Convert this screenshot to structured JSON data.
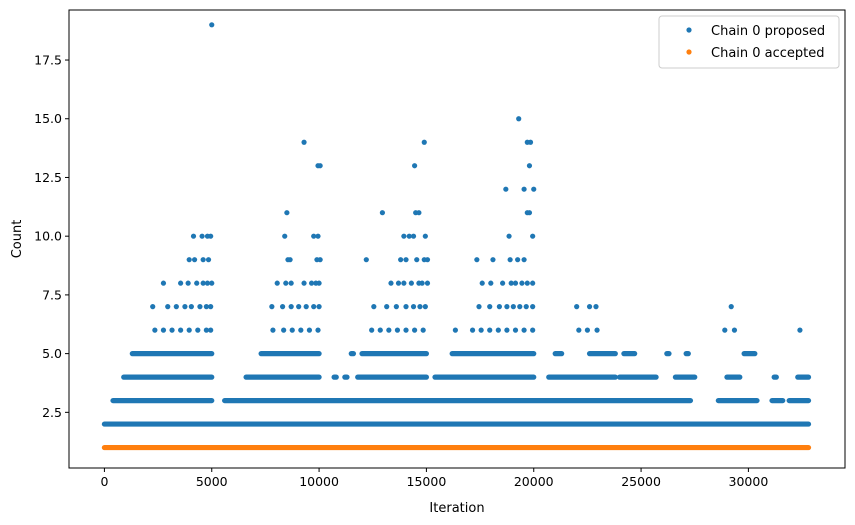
{
  "chart_data": {
    "type": "scatter",
    "title": "",
    "xlabel": "Iteration",
    "ylabel": "Count",
    "xlim": [
      -1650,
      34500
    ],
    "ylim": [
      0.13,
      19.63
    ],
    "xticks": [
      0,
      5000,
      10000,
      15000,
      20000,
      25000,
      30000
    ],
    "yticks": [
      2.5,
      5.0,
      7.5,
      10.0,
      12.5,
      15.0,
      17.5
    ],
    "xtick_labels": [
      "0",
      "5000",
      "10000",
      "15000",
      "20000",
      "25000",
      "30000"
    ],
    "ytick_labels": [
      "2.5",
      "5.0",
      "7.5",
      "10.0",
      "12.5",
      "15.0",
      "17.5"
    ],
    "grid": false,
    "legend_position": "top-right",
    "x_range": [
      0,
      32800
    ],
    "series": [
      {
        "name": "Chain 0 proposed",
        "color": "#1f77b4",
        "marker": "dot",
        "points": [
          [
            5000,
            19
          ],
          [
            9300,
            14
          ],
          [
            9950,
            13
          ],
          [
            10050,
            13
          ],
          [
            14900,
            14
          ],
          [
            14450,
            13
          ],
          [
            19300,
            15
          ],
          [
            19700,
            14
          ],
          [
            19850,
            14
          ],
          [
            19800,
            13
          ],
          [
            18700,
            12
          ],
          [
            19550,
            12
          ],
          [
            20000,
            12
          ],
          [
            8500,
            11
          ],
          [
            12950,
            11
          ],
          [
            14500,
            11
          ],
          [
            14650,
            11
          ],
          [
            19700,
            11
          ],
          [
            19800,
            11
          ],
          [
            4150,
            10
          ],
          [
            4550,
            10
          ],
          [
            4800,
            10
          ],
          [
            4950,
            10
          ],
          [
            8400,
            10
          ],
          [
            9750,
            10
          ],
          [
            9950,
            10
          ],
          [
            13950,
            10
          ],
          [
            14200,
            10
          ],
          [
            14400,
            10
          ],
          [
            14950,
            10
          ],
          [
            18850,
            10
          ],
          [
            19950,
            10
          ],
          [
            3950,
            9
          ],
          [
            4200,
            9
          ],
          [
            4600,
            9
          ],
          [
            4850,
            9
          ],
          [
            8550,
            9
          ],
          [
            8650,
            9
          ],
          [
            9900,
            9
          ],
          [
            10050,
            9
          ],
          [
            12200,
            9
          ],
          [
            13800,
            9
          ],
          [
            14050,
            9
          ],
          [
            14550,
            9
          ],
          [
            14900,
            9
          ],
          [
            15050,
            9
          ],
          [
            17350,
            9
          ],
          [
            18100,
            9
          ],
          [
            18900,
            9
          ],
          [
            19250,
            9
          ],
          [
            19550,
            9
          ],
          [
            2750,
            8
          ],
          [
            3550,
            8
          ],
          [
            3900,
            8
          ],
          [
            4300,
            8
          ],
          [
            4600,
            8
          ],
          [
            4800,
            8
          ],
          [
            5000,
            8
          ],
          [
            8050,
            8
          ],
          [
            8450,
            8
          ],
          [
            8700,
            8
          ],
          [
            9300,
            8
          ],
          [
            9650,
            8
          ],
          [
            9850,
            8
          ],
          [
            10000,
            8
          ],
          [
            13350,
            8
          ],
          [
            13700,
            8
          ],
          [
            13950,
            8
          ],
          [
            14300,
            8
          ],
          [
            14650,
            8
          ],
          [
            14800,
            8
          ],
          [
            15050,
            8
          ],
          [
            17600,
            8
          ],
          [
            18000,
            8
          ],
          [
            18550,
            8
          ],
          [
            18950,
            8
          ],
          [
            19150,
            8
          ],
          [
            19450,
            8
          ],
          [
            19700,
            8
          ],
          [
            19950,
            8
          ],
          [
            2250,
            7
          ],
          [
            2950,
            7
          ],
          [
            3350,
            7
          ],
          [
            3750,
            7
          ],
          [
            4050,
            7
          ],
          [
            4450,
            7
          ],
          [
            4750,
            7
          ],
          [
            4950,
            7
          ],
          [
            7800,
            7
          ],
          [
            8300,
            7
          ],
          [
            8700,
            7
          ],
          [
            9050,
            7
          ],
          [
            9400,
            7
          ],
          [
            9750,
            7
          ],
          [
            10000,
            7
          ],
          [
            12550,
            7
          ],
          [
            13150,
            7
          ],
          [
            13600,
            7
          ],
          [
            14050,
            7
          ],
          [
            14400,
            7
          ],
          [
            14700,
            7
          ],
          [
            14950,
            7
          ],
          [
            17450,
            7
          ],
          [
            17950,
            7
          ],
          [
            18400,
            7
          ],
          [
            18750,
            7
          ],
          [
            19050,
            7
          ],
          [
            19350,
            7
          ],
          [
            19650,
            7
          ],
          [
            19950,
            7
          ],
          [
            22000,
            7
          ],
          [
            22600,
            7
          ],
          [
            22900,
            7
          ],
          [
            29200,
            7
          ],
          [
            2350,
            6
          ],
          [
            2750,
            6
          ],
          [
            3150,
            6
          ],
          [
            3550,
            6
          ],
          [
            3950,
            6
          ],
          [
            4350,
            6
          ],
          [
            4750,
            6
          ],
          [
            4950,
            6
          ],
          [
            7850,
            6
          ],
          [
            8350,
            6
          ],
          [
            8750,
            6
          ],
          [
            9150,
            6
          ],
          [
            9550,
            6
          ],
          [
            9950,
            6
          ],
          [
            12450,
            6
          ],
          [
            12850,
            6
          ],
          [
            13250,
            6
          ],
          [
            13650,
            6
          ],
          [
            14050,
            6
          ],
          [
            14450,
            6
          ],
          [
            14850,
            6
          ],
          [
            16350,
            6
          ],
          [
            17150,
            6
          ],
          [
            17550,
            6
          ],
          [
            17950,
            6
          ],
          [
            18350,
            6
          ],
          [
            18750,
            6
          ],
          [
            19150,
            6
          ],
          [
            19550,
            6
          ],
          [
            19950,
            6
          ],
          [
            22100,
            6
          ],
          [
            22500,
            6
          ],
          [
            22950,
            6
          ],
          [
            28900,
            6
          ],
          [
            29350,
            6
          ],
          [
            32400,
            6
          ]
        ],
        "dense_bands": [
          {
            "y": 5,
            "ranges": [
              [
                1300,
                5000
              ],
              [
                7300,
                10000
              ],
              [
                11500,
                11600
              ],
              [
                12000,
                15000
              ],
              [
                16200,
                20000
              ],
              [
                21000,
                21300
              ],
              [
                22600,
                23800
              ],
              [
                24200,
                24700
              ],
              [
                26200,
                26300
              ],
              [
                27100,
                27200
              ],
              [
                29800,
                30300
              ]
            ]
          },
          {
            "y": 4,
            "ranges": [
              [
                900,
                5000
              ],
              [
                6600,
                10000
              ],
              [
                10700,
                10800
              ],
              [
                11200,
                11300
              ],
              [
                11800,
                15000
              ],
              [
                15400,
                20000
              ],
              [
                20700,
                23800
              ],
              [
                24000,
                25700
              ],
              [
                26600,
                27500
              ],
              [
                29000,
                29600
              ],
              [
                31200,
                31300
              ],
              [
                32300,
                32800
              ]
            ]
          },
          {
            "y": 3,
            "ranges": [
              [
                400,
                5000
              ],
              [
                5600,
                27300
              ],
              [
                28600,
                30400
              ],
              [
                31100,
                31600
              ],
              [
                31900,
                32800
              ]
            ]
          },
          {
            "y": 2,
            "ranges": [
              [
                0,
                32800
              ]
            ]
          }
        ]
      },
      {
        "name": "Chain 0 accepted",
        "color": "#ff7f0e",
        "marker": "dot",
        "dense_bands": [
          {
            "y": 1,
            "ranges": [
              [
                0,
                32800
              ]
            ]
          }
        ]
      }
    ]
  }
}
